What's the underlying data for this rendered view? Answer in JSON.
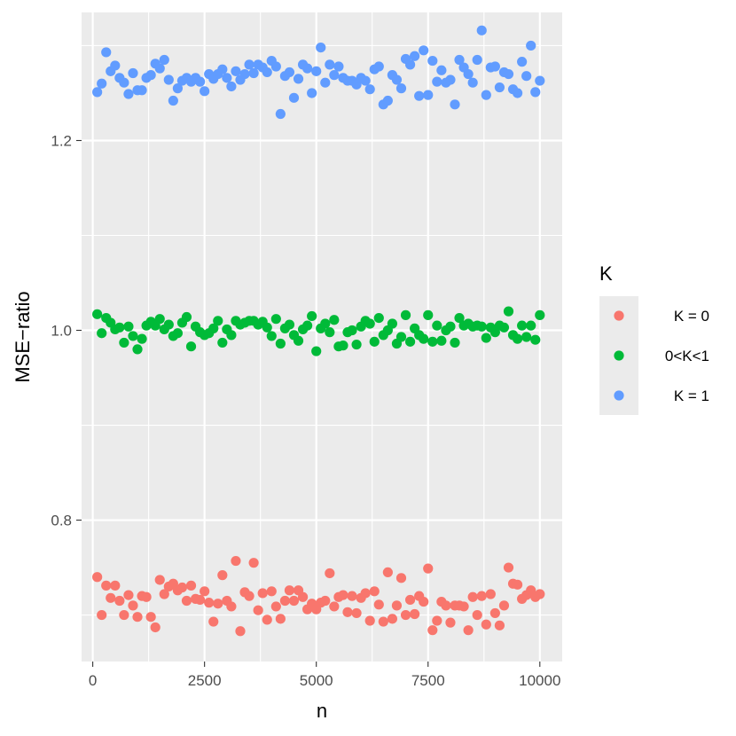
{
  "chart_data": {
    "type": "scatter",
    "title": "",
    "xlabel": "n",
    "ylabel": "MSE−ratio",
    "xlim": [
      -250,
      10500
    ],
    "ylim": [
      0.651,
      1.335
    ],
    "x_ticks": [
      0,
      2500,
      5000,
      7500,
      10000
    ],
    "x_tick_labels": [
      "0",
      "2500",
      "5000",
      "7500",
      "10000"
    ],
    "y_ticks": [
      0.8,
      1.0,
      1.2
    ],
    "y_tick_labels": [
      "0.8",
      "1.0",
      "1.2"
    ],
    "grid": true,
    "legend_title": "K",
    "legend_position": "right",
    "colors": [
      "#F8766D",
      "#00BA38",
      "#619CFF"
    ],
    "x": [
      100,
      200,
      300,
      400,
      500,
      600,
      700,
      800,
      900,
      1000,
      1100,
      1200,
      1300,
      1400,
      1500,
      1600,
      1700,
      1800,
      1900,
      2000,
      2100,
      2200,
      2300,
      2400,
      2500,
      2600,
      2700,
      2800,
      2900,
      3000,
      3100,
      3200,
      3300,
      3400,
      3500,
      3600,
      3700,
      3800,
      3900,
      4000,
      4100,
      4200,
      4300,
      4400,
      4500,
      4600,
      4700,
      4800,
      4900,
      5000,
      5100,
      5200,
      5300,
      5400,
      5500,
      5600,
      5700,
      5800,
      5900,
      6000,
      6100,
      6200,
      6300,
      6400,
      6500,
      6600,
      6700,
      6800,
      6900,
      7000,
      7100,
      7200,
      7300,
      7400,
      7500,
      7600,
      7700,
      7800,
      7900,
      8000,
      8100,
      8200,
      8300,
      8400,
      8500,
      8600,
      8700,
      8800,
      8900,
      9000,
      9100,
      9200,
      9300,
      9400,
      9500,
      9600,
      9700,
      9800,
      9900,
      10000
    ],
    "series": [
      {
        "name": "K = 0",
        "values": [
          0.74,
          0.7,
          0.731,
          0.718,
          0.731,
          0.715,
          0.7,
          0.721,
          0.71,
          0.698,
          0.72,
          0.719,
          0.698,
          0.687,
          0.737,
          0.722,
          0.73,
          0.733,
          0.726,
          0.729,
          0.715,
          0.731,
          0.717,
          0.716,
          0.725,
          0.713,
          0.693,
          0.712,
          0.742,
          0.715,
          0.709,
          0.757,
          0.683,
          0.724,
          0.72,
          0.755,
          0.705,
          0.723,
          0.695,
          0.725,
          0.709,
          0.696,
          0.715,
          0.726,
          0.715,
          0.726,
          0.719,
          0.706,
          0.712,
          0.706,
          0.713,
          0.715,
          0.744,
          0.709,
          0.719,
          0.721,
          0.703,
          0.72,
          0.702,
          0.718,
          0.723,
          0.694,
          0.725,
          0.711,
          0.693,
          0.745,
          0.696,
          0.71,
          0.739,
          0.7,
          0.716,
          0.701,
          0.72,
          0.714,
          0.749,
          0.684,
          0.694,
          0.714,
          0.71,
          0.692,
          0.71,
          0.71,
          0.709,
          0.684,
          0.719,
          0.7,
          0.72,
          0.69,
          0.722,
          0.702,
          0.689,
          0.71,
          0.75,
          0.733,
          0.732,
          0.717,
          0.721,
          0.726,
          0.719,
          0.722
        ]
      },
      {
        "name": "0<K<1",
        "values": [
          1.017,
          0.997,
          1.013,
          1.008,
          1.001,
          1.003,
          0.987,
          1.004,
          0.994,
          0.98,
          0.991,
          1.005,
          1.009,
          1.005,
          1.012,
          1.001,
          1.006,
          0.994,
          0.997,
          1.008,
          1.014,
          0.983,
          1.004,
          0.998,
          0.995,
          0.997,
          1.002,
          1.01,
          0.987,
          1.001,
          0.995,
          1.01,
          1.006,
          1.008,
          1.01,
          1.01,
          1.006,
          1.009,
          1.003,
          0.994,
          1.012,
          0.986,
          1.002,
          1.006,
          0.995,
          0.989,
          1.001,
          1.005,
          1.015,
          0.978,
          1.002,
          1.007,
          0.998,
          1.011,
          0.983,
          0.984,
          0.998,
          1.0,
          0.985,
          1.004,
          1.01,
          1.007,
          0.988,
          1.013,
          0.995,
          1.0,
          1.007,
          0.986,
          0.993,
          1.016,
          0.988,
          1.002,
          0.995,
          0.991,
          1.016,
          0.988,
          1.005,
          0.989,
          1.0,
          1.004,
          0.987,
          1.013,
          1.005,
          1.007,
          1.004,
          1.005,
          1.004,
          0.992,
          1.003,
          0.998,
          1.005,
          1.003,
          1.02,
          0.995,
          0.991,
          1.005,
          0.993,
          1.005,
          0.99,
          1.016
        ]
      },
      {
        "name": "K = 1",
        "values": [
          1.251,
          1.26,
          1.293,
          1.273,
          1.279,
          1.266,
          1.261,
          1.249,
          1.271,
          1.253,
          1.253,
          1.266,
          1.269,
          1.281,
          1.276,
          1.285,
          1.264,
          1.242,
          1.255,
          1.263,
          1.266,
          1.262,
          1.266,
          1.262,
          1.252,
          1.27,
          1.265,
          1.27,
          1.275,
          1.266,
          1.257,
          1.273,
          1.264,
          1.27,
          1.28,
          1.271,
          1.28,
          1.277,
          1.272,
          1.284,
          1.278,
          1.228,
          1.268,
          1.272,
          1.245,
          1.265,
          1.28,
          1.276,
          1.25,
          1.273,
          1.298,
          1.261,
          1.28,
          1.269,
          1.278,
          1.266,
          1.263,
          1.263,
          1.259,
          1.266,
          1.263,
          1.254,
          1.275,
          1.278,
          1.238,
          1.242,
          1.269,
          1.264,
          1.255,
          1.286,
          1.28,
          1.289,
          1.247,
          1.295,
          1.248,
          1.284,
          1.262,
          1.274,
          1.261,
          1.264,
          1.238,
          1.285,
          1.277,
          1.27,
          1.261,
          1.285,
          1.316,
          1.248,
          1.277,
          1.278,
          1.256,
          1.272,
          1.27,
          1.254,
          1.25,
          1.283,
          1.268,
          1.3,
          1.251,
          1.263
        ]
      }
    ]
  }
}
